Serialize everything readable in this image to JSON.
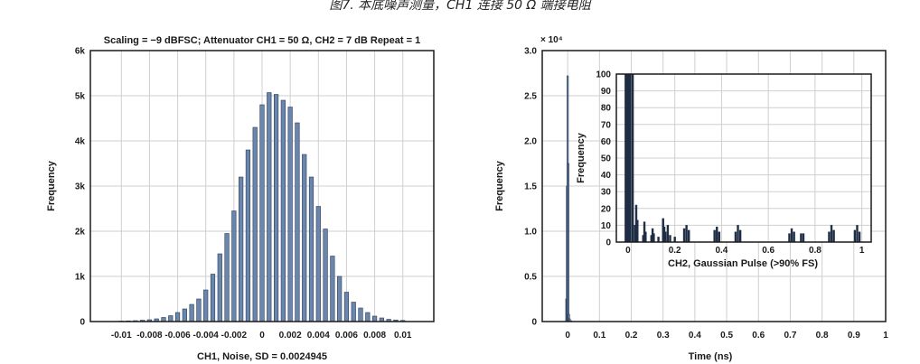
{
  "caption": "图7. 本底噪声测量，CH1 连接 50 Ω 端接电阻",
  "colors": {
    "bar_fill": "#6a86ad",
    "bar_stroke": "#2b3c57",
    "grid": "#cfcfcf",
    "dark_bar": "#1f2d44"
  },
  "chart_data": [
    {
      "type": "bar",
      "title": "Scaling = −9 dBFSC; Attenuator CH1 = 50 Ω, CH2 = 7 dB Repeat = 1",
      "xlabel": "CH1, Noise, SD = 0.0024945",
      "ylabel": "Frequency",
      "xlim": [
        -0.0122,
        0.0122
      ],
      "ylim": [
        0,
        6000
      ],
      "x_ticks": [
        -0.01,
        -0.008,
        -0.006,
        -0.004,
        -0.002,
        0,
        0.002,
        0.004,
        0.006,
        0.008,
        0.01
      ],
      "x_tick_labels": [
        "-0.01",
        "-0.008",
        "-0.006",
        "-0.004",
        "-0.002",
        "0",
        "0.002",
        "0.004",
        "0.006",
        "0.008",
        "0.01"
      ],
      "y_ticks": [
        0,
        1000,
        2000,
        3000,
        4000,
        5000,
        6000
      ],
      "y_tick_labels": [
        "0",
        "1k",
        "2k",
        "3k",
        "4k",
        "5k",
        "6k"
      ],
      "grid": true,
      "x": [
        -0.01,
        -0.0095,
        -0.009,
        -0.0085,
        -0.008,
        -0.0075,
        -0.007,
        -0.0065,
        -0.006,
        -0.0055,
        -0.005,
        -0.0045,
        -0.004,
        -0.0035,
        -0.003,
        -0.0025,
        -0.002,
        -0.0015,
        -0.001,
        -0.0005,
        0,
        0.0005,
        0.001,
        0.0015,
        0.002,
        0.0025,
        0.003,
        0.0035,
        0.004,
        0.0045,
        0.005,
        0.0055,
        0.006,
        0.0065,
        0.007,
        0.0075,
        0.008,
        0.0085,
        0.009,
        0.0095,
        0.01
      ],
      "values": [
        10,
        15,
        20,
        30,
        40,
        60,
        90,
        130,
        200,
        280,
        380,
        500,
        700,
        1050,
        1500,
        1950,
        2450,
        3200,
        3800,
        4300,
        4800,
        5070,
        5030,
        4900,
        4750,
        4400,
        3700,
        3200,
        2550,
        2050,
        1450,
        1000,
        650,
        430,
        300,
        200,
        120,
        80,
        50,
        35,
        25
      ]
    },
    {
      "type": "bar",
      "title": "",
      "xlabel": "Time (ns)",
      "ylabel": "Frequency",
      "y_multiplier": "× 10⁴",
      "xlim": [
        -0.08,
        1.0
      ],
      "ylim": [
        0,
        3.0
      ],
      "x_ticks": [
        0,
        0.1,
        0.2,
        0.3,
        0.4,
        0.5,
        0.6,
        0.7,
        0.8,
        0.9,
        1
      ],
      "x_tick_labels": [
        "0",
        "0.1",
        "0.2",
        "0.3",
        "0.4",
        "0.5",
        "0.6",
        "0.7",
        "0.8",
        "0.9",
        "1"
      ],
      "y_ticks": [
        0,
        0.5,
        1.0,
        1.5,
        2.0,
        2.5,
        3.0
      ],
      "y_tick_labels": [
        "0",
        "0.5",
        "1.0",
        "1.5",
        "2.0",
        "2.5",
        "3.0"
      ],
      "grid": true,
      "x": [
        -0.004,
        -0.002,
        0,
        0.002,
        0.004,
        0.006,
        0.01
      ],
      "values": [
        0.25,
        1.5,
        2.72,
        1.75,
        0.08,
        0.03,
        0.01
      ],
      "inset": {
        "type": "bar",
        "xlabel": "CH2, Gaussian Pulse (>90% FS)",
        "ylabel": "Frequency",
        "xlim": [
          -0.05,
          1.04
        ],
        "ylim": [
          0,
          100
        ],
        "x_ticks": [
          0,
          0.2,
          0.4,
          0.6,
          0.8,
          1
        ],
        "x_tick_labels": [
          "0",
          "0.2",
          "0.4",
          "0.6",
          "0.8",
          "1"
        ],
        "y_ticks": [
          0,
          10,
          20,
          30,
          40,
          50,
          60,
          70,
          80,
          90,
          100
        ],
        "y_tick_labels": [
          "0",
          "10",
          "20",
          "30",
          "40",
          "50",
          "60",
          "70",
          "80",
          "90",
          "100"
        ],
        "grid": true,
        "x": [
          -0.01,
          -0.005,
          0,
          0.005,
          0.01,
          0.02,
          0.03,
          0.035,
          0.04,
          0.065,
          0.07,
          0.075,
          0.1,
          0.105,
          0.11,
          0.13,
          0.15,
          0.155,
          0.16,
          0.17,
          0.18,
          0.2,
          0.24,
          0.25,
          0.26,
          0.37,
          0.38,
          0.39,
          0.46,
          0.47,
          0.48,
          0.69,
          0.7,
          0.71,
          0.74,
          0.75,
          0.86,
          0.87,
          0.88,
          0.97,
          0.98,
          0.99
        ],
        "values": [
          100,
          100,
          100,
          100,
          100,
          100,
          10,
          22,
          13,
          4,
          12,
          6,
          4,
          8,
          5,
          3,
          14,
          9,
          6,
          10,
          4,
          3,
          8,
          10,
          7,
          7,
          9,
          6,
          6,
          10,
          7,
          5,
          8,
          6,
          5,
          5,
          6,
          10,
          7,
          7,
          10,
          6
        ]
      }
    }
  ]
}
